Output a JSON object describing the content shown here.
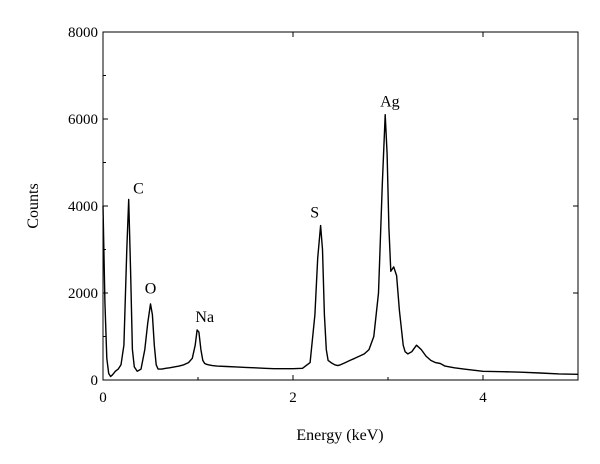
{
  "chart_data": {
    "type": "line",
    "xlabel": "Energy (keV)",
    "ylabel": "Counts",
    "xlim": [
      0,
      5
    ],
    "ylim": [
      0,
      8000
    ],
    "x_ticks": [
      "0",
      "2",
      "4"
    ],
    "y_ticks": [
      "0",
      "2000",
      "4000",
      "6000",
      "8000"
    ],
    "x_tick_values": [
      0,
      2,
      4
    ],
    "y_tick_values": [
      0,
      2000,
      4000,
      6000,
      8000
    ],
    "grid": false,
    "line_color": "#000000",
    "series": [
      {
        "x": [
          0.0,
          0.02,
          0.04,
          0.06,
          0.08,
          0.1,
          0.13,
          0.16,
          0.19,
          0.22,
          0.25,
          0.27,
          0.29,
          0.31,
          0.33,
          0.36,
          0.4,
          0.44,
          0.47,
          0.5,
          0.52,
          0.54,
          0.56,
          0.58,
          0.62,
          0.66,
          0.7,
          0.75,
          0.8,
          0.85,
          0.9,
          0.94,
          0.97,
          0.99,
          1.01,
          1.03,
          1.05,
          1.07,
          1.09,
          1.11,
          1.15,
          1.2,
          1.3,
          1.4,
          1.5,
          1.6,
          1.7,
          1.8,
          1.9,
          2.0,
          2.1,
          2.18,
          2.23,
          2.26,
          2.29,
          2.31,
          2.33,
          2.35,
          2.37,
          2.4,
          2.44,
          2.47,
          2.5,
          2.55,
          2.6,
          2.65,
          2.7,
          2.75,
          2.8,
          2.85,
          2.9,
          2.94,
          2.97,
          2.99,
          3.01,
          3.03,
          3.06,
          3.09,
          3.12,
          3.14,
          3.16,
          3.18,
          3.21,
          3.25,
          3.3,
          3.35,
          3.4,
          3.45,
          3.5,
          3.55,
          3.6,
          3.7,
          3.8,
          4.0,
          4.2,
          4.4,
          4.6,
          4.8,
          5.0
        ],
        "values": [
          4000,
          1800,
          500,
          150,
          80,
          120,
          200,
          250,
          350,
          800,
          3000,
          4150,
          2500,
          700,
          300,
          200,
          250,
          700,
          1300,
          1750,
          1500,
          800,
          350,
          250,
          250,
          270,
          280,
          300,
          320,
          350,
          400,
          500,
          800,
          1150,
          1100,
          700,
          450,
          380,
          360,
          350,
          330,
          320,
          310,
          300,
          290,
          280,
          270,
          260,
          260,
          260,
          270,
          400,
          1500,
          2800,
          3550,
          3000,
          1500,
          700,
          450,
          400,
          350,
          330,
          350,
          400,
          450,
          500,
          550,
          600,
          700,
          1000,
          2000,
          4500,
          6100,
          5200,
          3500,
          2500,
          2600,
          2400,
          1600,
          1200,
          800,
          650,
          600,
          650,
          800,
          700,
          550,
          450,
          400,
          380,
          320,
          280,
          250,
          200,
          190,
          180,
          160,
          140,
          130
        ]
      }
    ],
    "annotations": [
      {
        "text": "C",
        "x": 0.3,
        "y": 4150
      },
      {
        "text": "O",
        "x": 0.5,
        "y": 1800
      },
      {
        "text": "Na",
        "x": 1.05,
        "y": 1150
      },
      {
        "text": "S",
        "x": 2.27,
        "y": 3550
      },
      {
        "text": "Ag",
        "x": 3.02,
        "y": 6100
      }
    ]
  }
}
